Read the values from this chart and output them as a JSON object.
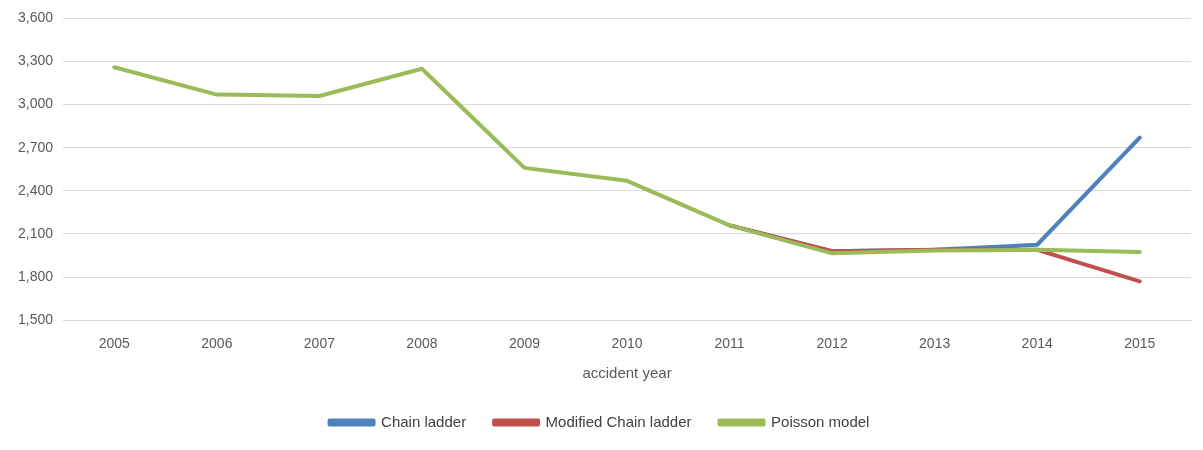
{
  "chart_data": {
    "type": "line",
    "xlabel": "accident year",
    "categories": [
      "2005",
      "2006",
      "2007",
      "2008",
      "2009",
      "2010",
      "2011",
      "2012",
      "2013",
      "2014",
      "2015"
    ],
    "series": [
      {
        "name": "Chain ladder",
        "color": "#4f81bd",
        "values": [
          null,
          null,
          null,
          null,
          null,
          null,
          2160,
          1980,
          1990,
          2025,
          2770
        ]
      },
      {
        "name": "Modified Chain ladder",
        "color": "#c0504d",
        "values": [
          null,
          null,
          null,
          null,
          null,
          null,
          2160,
          1980,
          1990,
          1990,
          1770
        ]
      },
      {
        "name": "Poisson model",
        "color": "#9bbb59",
        "values": [
          3260,
          3070,
          3060,
          3250,
          2560,
          2470,
          2160,
          1965,
          1985,
          1990,
          1975
        ]
      }
    ],
    "ylim": [
      1500,
      3600
    ],
    "yticks": [
      {
        "value": 1500,
        "label": "1,500"
      },
      {
        "value": 1800,
        "label": "1,800"
      },
      {
        "value": 2100,
        "label": "2,100"
      },
      {
        "value": 2400,
        "label": "2,400"
      },
      {
        "value": 2700,
        "label": "2,700"
      },
      {
        "value": 3000,
        "label": "3,000"
      },
      {
        "value": 3300,
        "label": "3,300"
      },
      {
        "value": 3600,
        "label": "3,600"
      }
    ],
    "grid": "y",
    "legend": "bottom",
    "marker": "none",
    "line_style": "solid"
  }
}
